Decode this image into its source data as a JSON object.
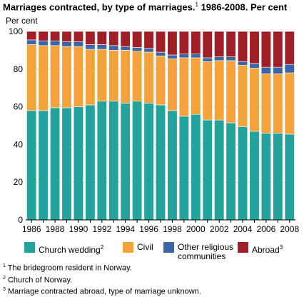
{
  "title": "Marriages contracted, by type of marriages.",
  "title_sup": "1",
  "title_tail": "1986-2008. Per cent",
  "chart_data": {
    "type": "bar",
    "stacked": true,
    "ylabel": "Per cent",
    "ylim": [
      0,
      100
    ],
    "yticks": [
      0,
      20,
      40,
      60,
      80,
      100
    ],
    "grid": true,
    "legend_placement": "bottom",
    "categories": [
      "1986",
      "1987",
      "1988",
      "1989",
      "1990",
      "1991",
      "1992",
      "1993",
      "1994",
      "1995",
      "1996",
      "1997",
      "1998",
      "1999",
      "2000",
      "2001",
      "2002",
      "2003",
      "2004",
      "2005",
      "2006",
      "2007",
      "2008"
    ],
    "x_tick_labels": [
      "1986",
      "1988",
      "1990",
      "1992",
      "1994",
      "1996",
      "1998",
      "2000",
      "2002",
      "2004",
      "2006",
      "2008"
    ],
    "series": [
      {
        "name": "Church wedding",
        "sup": "2",
        "color": "#23a39c",
        "values": [
          58,
          58,
          59.5,
          59.5,
          60,
          61,
          63,
          63,
          62,
          63,
          62,
          61,
          58,
          55,
          56,
          53,
          53,
          51.5,
          49.5,
          47,
          46,
          46,
          45.5
        ]
      },
      {
        "name": "Civil",
        "sup": "",
        "color": "#f4a23c",
        "values": [
          35,
          34.5,
          33,
          32.5,
          32,
          29.5,
          27.5,
          27,
          28,
          26.5,
          27,
          26,
          27.5,
          31,
          30,
          31,
          31.5,
          33,
          32.5,
          33.5,
          31.5,
          31.5,
          32.5
        ]
      },
      {
        "name": "Other religious communities",
        "sup": "",
        "color": "#3a66a7",
        "values": [
          2.5,
          2.5,
          2.5,
          2.5,
          2.5,
          2.5,
          2.5,
          2.5,
          2,
          2,
          2,
          2,
          2,
          2,
          2,
          2,
          2,
          2,
          2,
          2.5,
          3.5,
          3.5,
          4.5
        ]
      },
      {
        "name": "Abroad",
        "sup": "3",
        "color": "#a01f27",
        "values": [
          4.5,
          5,
          5,
          5.5,
          5.5,
          7,
          7,
          7.5,
          8,
          8.5,
          9,
          11,
          12.5,
          12,
          12,
          14,
          13.5,
          13.5,
          16,
          17,
          19,
          19,
          17.5
        ]
      }
    ]
  },
  "footnotes": [
    {
      "mark": "1",
      "text": "The bridegroom resident in Norway."
    },
    {
      "mark": "2",
      "text": "Church of Norway."
    },
    {
      "mark": "3",
      "text": "Marriage contracted abroad, type of marriage unknown."
    }
  ]
}
